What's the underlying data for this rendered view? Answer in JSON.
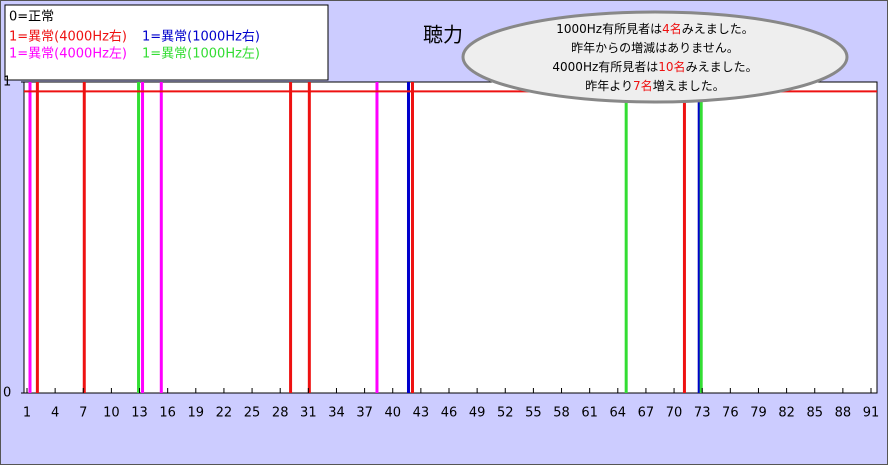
{
  "chart_data": {
    "type": "vlines",
    "title": "聴力",
    "legend_title": "0=正常",
    "series": [
      {
        "name": "1=異常(4000Hz右)",
        "color": "#ee1111",
        "x": [
          2,
          7,
          29,
          31,
          42,
          71
        ],
        "values": [
          1,
          1,
          1,
          1,
          1,
          1
        ]
      },
      {
        "name": "1=異常(1000Hz右)",
        "color": "#0000cc",
        "x": [
          42,
          73
        ],
        "values": [
          1,
          1
        ]
      },
      {
        "name": "1=異常(4000Hz左)",
        "color": "#ff00ff",
        "x": [
          1,
          13,
          15,
          38
        ],
        "values": [
          1,
          1,
          1,
          1
        ]
      },
      {
        "name": "1=異常(1000Hz左)",
        "color": "#33dd33",
        "x": [
          13,
          65,
          73
        ],
        "values": [
          1,
          1,
          1
        ]
      }
    ],
    "reference_line": {
      "value": 0.97,
      "color": "#ee1111"
    },
    "xlim": [
      0.68,
      91.64
    ],
    "xticks": [
      1,
      4,
      7,
      10,
      13,
      16,
      19,
      22,
      25,
      28,
      31,
      34,
      37,
      40,
      43,
      46,
      49,
      52,
      55,
      58,
      61,
      64,
      67,
      70,
      73,
      76,
      79,
      82,
      85,
      88,
      91
    ],
    "ylim": [
      0,
      1
    ],
    "yticks": [
      0,
      1
    ],
    "annotation": [
      [
        {
          "text": "1000Hz有所見者は"
        },
        {
          "text": "4名",
          "color": "#ee1111"
        },
        {
          "text": "みえました。"
        }
      ],
      [
        {
          "text": "昨年からの増減はありません。"
        }
      ],
      [
        {
          "text": "4000Hz有所見者は"
        },
        {
          "text": "10名",
          "color": "#ee1111"
        },
        {
          "text": "みえました。"
        }
      ],
      [
        {
          "text": "昨年より"
        },
        {
          "text": "7名",
          "color": "#ee1111"
        },
        {
          "text": "増えました。"
        }
      ]
    ]
  }
}
